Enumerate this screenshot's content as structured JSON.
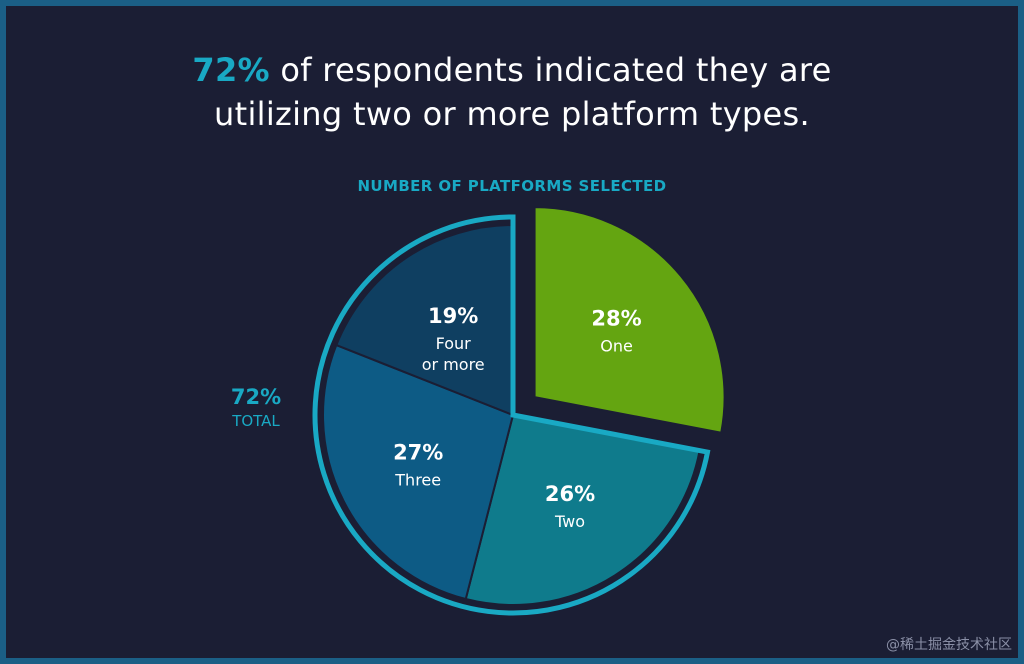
{
  "headline": {
    "highlight": "72%",
    "line1_rest": " of respondents indicated they are",
    "line2": "utilizing two or more platform types."
  },
  "watermark": "@稀土掘金技术社区",
  "colors": {
    "background": "#1b1e34",
    "frame": "#1b5f86",
    "accent": "#19a9c4",
    "one": "#64a511",
    "two": "#0f7b8c",
    "three": "#0d5b85",
    "four_or_more": "#0f3f61"
  },
  "chart_data": {
    "type": "pie",
    "title": "NUMBER OF PLATFORMS SELECTED",
    "slices": [
      {
        "label": "One",
        "value": 28,
        "display": "28%",
        "label_lines": [
          "One"
        ],
        "exploded": true,
        "color": "#64a511"
      },
      {
        "label": "Two",
        "value": 26,
        "display": "26%",
        "label_lines": [
          "Two"
        ],
        "exploded": false,
        "color": "#0f7b8c"
      },
      {
        "label": "Three",
        "value": 27,
        "display": "27%",
        "label_lines": [
          "Three"
        ],
        "exploded": false,
        "color": "#0d5b85"
      },
      {
        "label": "Four or more",
        "value": 19,
        "display": "19%",
        "label_lines": [
          "Four",
          "or more"
        ],
        "exploded": false,
        "color": "#0f3f61"
      }
    ],
    "group_annotation": {
      "value": "72%",
      "label": "TOTAL"
    }
  }
}
